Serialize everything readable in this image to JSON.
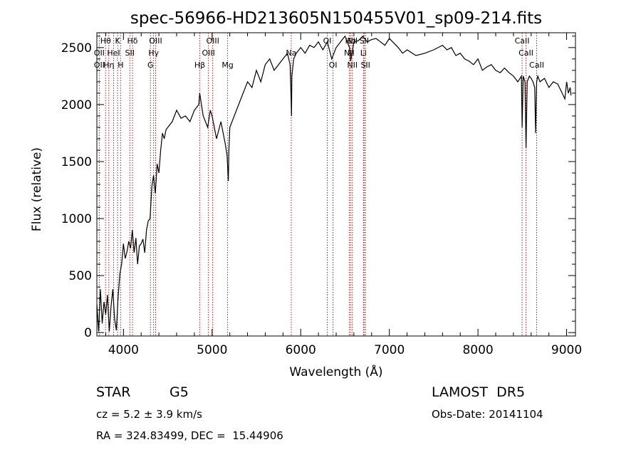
{
  "chart_data": {
    "type": "line",
    "title": "spec-56966-HD213605N150455V01_sp09-214.fits",
    "xlabel": "Wavelength (Å)",
    "ylabel": "Flux (relative)",
    "xlim": [
      3700,
      9100
    ],
    "ylim": [
      -30,
      2630
    ],
    "xticks": [
      4000,
      5000,
      6000,
      7000,
      8000,
      9000
    ],
    "xtick_labels": [
      "4000",
      "5000",
      "6000",
      "7000",
      "8000",
      "9000"
    ],
    "yticks": [
      0,
      500,
      1000,
      1500,
      2000,
      2500
    ],
    "ytick_labels": [
      "0",
      "500",
      "1000",
      "1500",
      "2000",
      "2500"
    ],
    "grid": false,
    "line_color": "#000000",
    "marker_color": "#a02020",
    "series": [
      {
        "x": [
          3700,
          3720,
          3740,
          3760,
          3780,
          3800,
          3820,
          3840,
          3860,
          3880,
          3900,
          3920,
          3940,
          3960,
          3980,
          4000,
          4020,
          4040,
          4060,
          4080,
          4100,
          4120,
          4140,
          4160,
          4180,
          4200,
          4220,
          4240,
          4260,
          4280,
          4300,
          4320,
          4340,
          4360,
          4380,
          4400,
          4420,
          4440,
          4460,
          4480,
          4500,
          4550,
          4600,
          4650,
          4700,
          4750,
          4800,
          4850,
          4860,
          4870,
          4900,
          4950,
          4980,
          5000,
          5050,
          5100,
          5150,
          5170,
          5183,
          5190,
          5200,
          5250,
          5300,
          5350,
          5400,
          5450,
          5500,
          5550,
          5600,
          5650,
          5700,
          5750,
          5800,
          5850,
          5880,
          5890,
          5896,
          5900,
          5920,
          5950,
          6000,
          6050,
          6100,
          6150,
          6200,
          6250,
          6300,
          6350,
          6400,
          6450,
          6500,
          6550,
          6563,
          6580,
          6600,
          6650,
          6700,
          6750,
          6800,
          6850,
          6900,
          6950,
          7000,
          7050,
          7100,
          7150,
          7200,
          7300,
          7400,
          7500,
          7600,
          7650,
          7700,
          7750,
          7800,
          7850,
          7900,
          7950,
          8000,
          8050,
          8100,
          8150,
          8200,
          8250,
          8300,
          8350,
          8400,
          8450,
          8490,
          8498,
          8510,
          8530,
          8542,
          8555,
          8580,
          8600,
          8620,
          8640,
          8650,
          8662,
          8675,
          8700,
          8750,
          8800,
          8850,
          8900,
          8950,
          8980,
          9000,
          9020,
          9040,
          9050
        ],
        "y": [
          250,
          10,
          380,
          80,
          270,
          160,
          330,
          10,
          230,
          380,
          120,
          20,
          320,
          520,
          600,
          780,
          650,
          710,
          800,
          740,
          900,
          700,
          830,
          600,
          760,
          780,
          820,
          700,
          900,
          980,
          1000,
          1280,
          1380,
          1220,
          1480,
          1400,
          1600,
          1750,
          1700,
          1780,
          1800,
          1850,
          1950,
          1880,
          1900,
          1850,
          1950,
          2000,
          2100,
          2050,
          1900,
          1800,
          1950,
          1900,
          1700,
          1850,
          1650,
          1550,
          1330,
          1600,
          1800,
          1900,
          2000,
          2100,
          2200,
          2150,
          2300,
          2200,
          2350,
          2400,
          2300,
          2350,
          2400,
          2450,
          2350,
          2100,
          1900,
          2250,
          2400,
          2450,
          2500,
          2450,
          2520,
          2500,
          2550,
          2480,
          2550,
          2400,
          2500,
          2550,
          2600,
          2500,
          2380,
          2450,
          2550,
          2560,
          2600,
          2550,
          2570,
          2580,
          2550,
          2520,
          2580,
          2540,
          2500,
          2450,
          2480,
          2430,
          2450,
          2480,
          2520,
          2480,
          2500,
          2430,
          2450,
          2400,
          2380,
          2350,
          2400,
          2300,
          2330,
          2350,
          2300,
          2280,
          2320,
          2280,
          2250,
          2200,
          2250,
          1800,
          2250,
          2200,
          1620,
          2200,
          2250,
          2230,
          2200,
          2150,
          1750,
          2200,
          2250,
          2200,
          2230,
          2150,
          2200,
          2180,
          2100,
          2050,
          2200,
          2100,
          2150,
          2080
        ]
      }
    ],
    "line_markers": [
      {
        "label": "OII",
        "wavelength": 3727
      },
      {
        "label": "Hθ",
        "wavelength": 3798
      },
      {
        "label": "Hη",
        "wavelength": 3835
      },
      {
        "label": "HeI",
        "wavelength": 3889
      },
      {
        "label": "K",
        "wavelength": 3934
      },
      {
        "label": "H",
        "wavelength": 3968
      },
      {
        "label": "Hδ",
        "wavelength": 4102
      },
      {
        "label": "SII",
        "wavelength": 4072
      },
      {
        "label": "G",
        "wavelength": 4305
      },
      {
        "label": "Hγ",
        "wavelength": 4340
      },
      {
        "label": "OIII",
        "wavelength": 4363
      },
      {
        "label": "Hβ",
        "wavelength": 4861
      },
      {
        "label": "OIII",
        "wavelength": 4959
      },
      {
        "label": "OIII",
        "wavelength": 5007
      },
      {
        "label": "Mg",
        "wavelength": 5175
      },
      {
        "label": "Na",
        "wavelength": 5893
      },
      {
        "label": "OI",
        "wavelength": 6300
      },
      {
        "label": "OI",
        "wavelength": 6364
      },
      {
        "label": "NII",
        "wavelength": 6548
      },
      {
        "label": "Hα",
        "wavelength": 6563
      },
      {
        "label": "NII",
        "wavelength": 6583
      },
      {
        "label": "Li",
        "wavelength": 6708
      },
      {
        "label": "SII",
        "wavelength": 6716
      },
      {
        "label": "SII",
        "wavelength": 6731
      },
      {
        "label": "CaII",
        "wavelength": 8498
      },
      {
        "label": "CaII",
        "wavelength": 8542
      },
      {
        "label": "CaII",
        "wavelength": 8662
      }
    ],
    "line_labels": [
      {
        "text": "Hθ",
        "wavelength": 3798,
        "row": 0
      },
      {
        "text": "K",
        "wavelength": 3934,
        "row": 0
      },
      {
        "text": "Hδ",
        "wavelength": 4102,
        "row": 0
      },
      {
        "text": "OIII",
        "wavelength": 4363,
        "row": 0
      },
      {
        "text": "OIII",
        "wavelength": 5007,
        "row": 0
      },
      {
        "text": "OI",
        "wavelength": 6300,
        "row": 0
      },
      {
        "text": "NII",
        "wavelength": 6583,
        "row": 0
      },
      {
        "text": "Hα",
        "wavelength": 6563,
        "row": 0
      },
      {
        "text": "SII",
        "wavelength": 6716,
        "row": 0
      },
      {
        "text": "CaII",
        "wavelength": 8498,
        "row": 0
      },
      {
        "text": "OII",
        "wavelength": 3727,
        "row": 1
      },
      {
        "text": "HeI",
        "wavelength": 3889,
        "row": 1
      },
      {
        "text": "SII",
        "wavelength": 4072,
        "row": 1
      },
      {
        "text": "Hγ",
        "wavelength": 4340,
        "row": 1
      },
      {
        "text": "OIII",
        "wavelength": 4959,
        "row": 1
      },
      {
        "text": "Na",
        "wavelength": 5893,
        "row": 1
      },
      {
        "text": "NII",
        "wavelength": 6548,
        "row": 1
      },
      {
        "text": "Li",
        "wavelength": 6708,
        "row": 1
      },
      {
        "text": "CaII",
        "wavelength": 8542,
        "row": 1
      },
      {
        "text": "OII",
        "wavelength": 3727,
        "row": 2
      },
      {
        "text": "Hη",
        "wavelength": 3835,
        "row": 2
      },
      {
        "text": "H",
        "wavelength": 3968,
        "row": 2
      },
      {
        "text": "G",
        "wavelength": 4305,
        "row": 2
      },
      {
        "text": "Hβ",
        "wavelength": 4861,
        "row": 2
      },
      {
        "text": "Mg",
        "wavelength": 5175,
        "row": 2
      },
      {
        "text": "OI",
        "wavelength": 6364,
        "row": 2
      },
      {
        "text": "NII",
        "wavelength": 6583,
        "row": 2
      },
      {
        "text": "SII",
        "wavelength": 6731,
        "row": 2
      },
      {
        "text": "CaII",
        "wavelength": 8662,
        "row": 2
      }
    ]
  },
  "info": {
    "class": "STAR",
    "subclass": "G5",
    "survey": "LAMOST  DR5",
    "cz": "cz = 5.2 ± 3.9 km/s",
    "obs_date": "Obs-Date: 20141104",
    "coords": "RA = 324.83499, DEC =  15.44906"
  }
}
